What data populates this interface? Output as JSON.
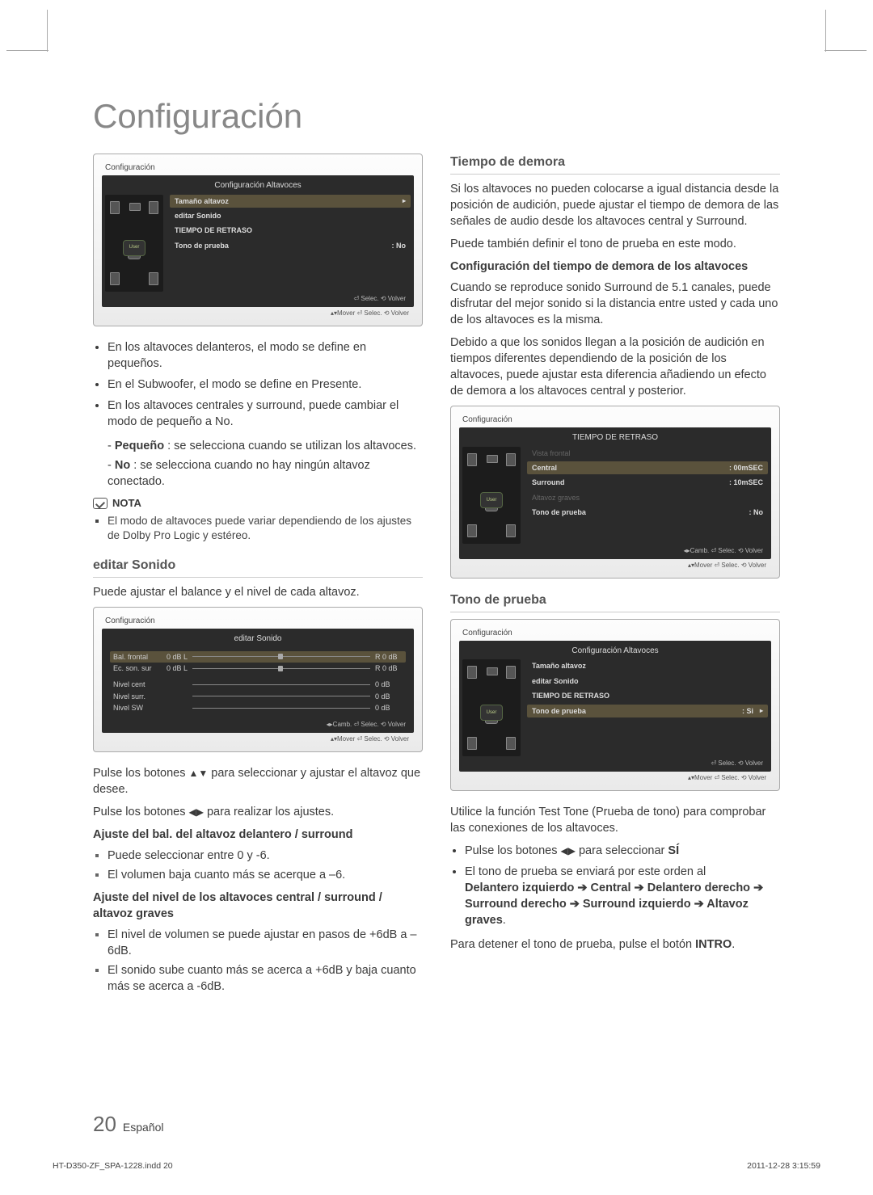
{
  "page": {
    "title": "Configuración",
    "number": "20",
    "language": "Español",
    "footer_file": "HT-D350-ZF_SPA-1228.indd   20",
    "footer_date": "2011-12-28   3:15:59"
  },
  "panel1": {
    "breadcrumb": "Configuración",
    "title": "Configuración Altavoces",
    "listener": "User",
    "items": [
      {
        "label": "Tamaño altavoz",
        "value": "",
        "hl": true,
        "arrow": true
      },
      {
        "label": "editar Sonido",
        "value": ""
      },
      {
        "label": "TIEMPO DE RETRASO",
        "value": ""
      },
      {
        "label": "Tono de prueba",
        "value": ": No"
      }
    ],
    "footer": "⏎ Selec.   ⟲ Volver",
    "outer_footer": "▴▾Mover   ⏎ Selec.   ⟲ Volver"
  },
  "left": {
    "bullets": [
      "En los altavoces delanteros, el modo se define en pequeños.",
      "En el Subwoofer, el modo se define en Presente.",
      "En los altavoces centrales y surround, puede cambiar el modo de pequeño a No."
    ],
    "sub1_label": "Pequeño",
    "sub1_text": " : se selecciona cuando se utilizan los altavoces.",
    "sub2_label": "No",
    "sub2_text": " : se selecciona cuando no hay ningún altavoz conectado.",
    "nota_head": "NOTA",
    "nota_item": "El modo de altavoces puede variar dependiendo de los ajustes de Dolby Pro Logic y estéreo.",
    "h_editar": "editar Sonido",
    "p_editar": "Puede ajustar el balance y el nivel de cada altavoz."
  },
  "panel2": {
    "breadcrumb": "Configuración",
    "title": "editar Sonido",
    "rows": [
      {
        "label": "Bal. frontal",
        "l": "0 dB L",
        "r": "R 0 dB",
        "hl": true,
        "thumb": true
      },
      {
        "label": "Ec. son. sur",
        "l": "0 dB L",
        "r": "R 0 dB",
        "thumb": true
      }
    ],
    "levels": [
      {
        "label": "Nivel cent",
        "r": "0 dB"
      },
      {
        "label": "Nivel surr.",
        "r": "0 dB"
      },
      {
        "label": "Nivel SW",
        "r": "0 dB"
      }
    ],
    "footer": "◂▸Camb.   ⏎ Selec.   ⟲ Volver",
    "outer_footer": "▴▾Mover   ⏎ Selec.   ⟲ Volver"
  },
  "left2": {
    "p_updown_a": "Pulse los botones ",
    "p_updown_b": " para seleccionar y ajustar el altavoz que desee.",
    "p_lr_a": "Pulse los botones ",
    "p_lr_b": " para realizar los ajustes.",
    "h_bal": "Ajuste del bal. del altavoz delantero / surround",
    "bal_items": [
      "Puede seleccionar entre 0 y -6.",
      "El volumen baja cuanto más se acerque a –6."
    ],
    "h_level": "Ajuste del nivel de los altavoces central / surround / altavoz graves",
    "level_items": [
      "El nivel de volumen se puede ajustar en pasos de +6dB a –6dB.",
      "El sonido sube cuanto más se acerca a +6dB y baja cuanto más se acerca a -6dB."
    ]
  },
  "right": {
    "h_demora": "Tiempo de demora",
    "p_demora1": "Si los altavoces no pueden colocarse a igual distancia desde la posición de audición, puede ajustar el tiempo de demora de las señales de audio desde los altavoces central y Surround.",
    "p_demora2": "Puede también definir el tono de prueba en este modo.",
    "h_conf": "Configuración del tiempo de demora de los altavoces",
    "p_conf1": "Cuando se reproduce sonido Surround de 5.1 canales, puede disfrutar del mejor sonido si la distancia entre usted y cada uno de los altavoces es la misma.",
    "p_conf2": "Debido a que los sonidos llegan a la posición de audición en tiempos diferentes dependiendo de la posición de los altavoces, puede ajustar esta diferencia añadiendo un efecto de demora a los altavoces central y posterior."
  },
  "panel3": {
    "breadcrumb": "Configuración",
    "title": "TIEMPO DE RETRASO",
    "listener": "User",
    "items": [
      {
        "label": "Vista frontal",
        "value": "",
        "dim": true
      },
      {
        "label": "Central",
        "value": ":  00mSEC",
        "hl": true
      },
      {
        "label": "Surround",
        "value": ":  10mSEC"
      },
      {
        "label": "Altavoz graves",
        "value": "",
        "dim": true
      },
      {
        "label": "Tono de prueba",
        "value": ":  No"
      }
    ],
    "footer": "◂▸Camb.   ⏎ Selec.   ⟲ Volver",
    "outer_footer": "▴▾Mover   ⏎ Selec.   ⟲ Volver"
  },
  "right2": {
    "h_tono": "Tono de prueba"
  },
  "panel4": {
    "breadcrumb": "Configuración",
    "title": "Configuración Altavoces",
    "listener": "User",
    "items": [
      {
        "label": "Tamaño altavoz",
        "value": ""
      },
      {
        "label": "editar Sonido",
        "value": ""
      },
      {
        "label": "TIEMPO DE RETRASO",
        "value": ""
      },
      {
        "label": "Tono de prueba",
        "value": ": Si",
        "hl": true,
        "arrow": true
      }
    ],
    "footer": "⏎ Selec.   ⟲ Volver",
    "outer_footer": "▴▾Mover   ⏎ Selec.   ⟲ Volver"
  },
  "right3": {
    "p_test": "Utilice la función Test Tone (Prueba de tono) para comprobar las conexiones de los altavoces.",
    "b1a": "Pulse los botones ",
    "b1b": " para seleccionar ",
    "b1c": "SÍ",
    "b2": "El tono de prueba se enviará por este orden al",
    "order": "Delantero izquierdo ➔ Central ➔ Delantero derecho ➔ Surround derecho ➔ Surround izquierdo ➔ Altavoz graves",
    "order_tail": ".",
    "p_stop_a": "Para detener el tono de prueba, pulse el botón ",
    "p_stop_b": "INTRO",
    "p_stop_c": "."
  },
  "glyphs": {
    "updown": "▲▼",
    "leftright": "◀▶"
  }
}
